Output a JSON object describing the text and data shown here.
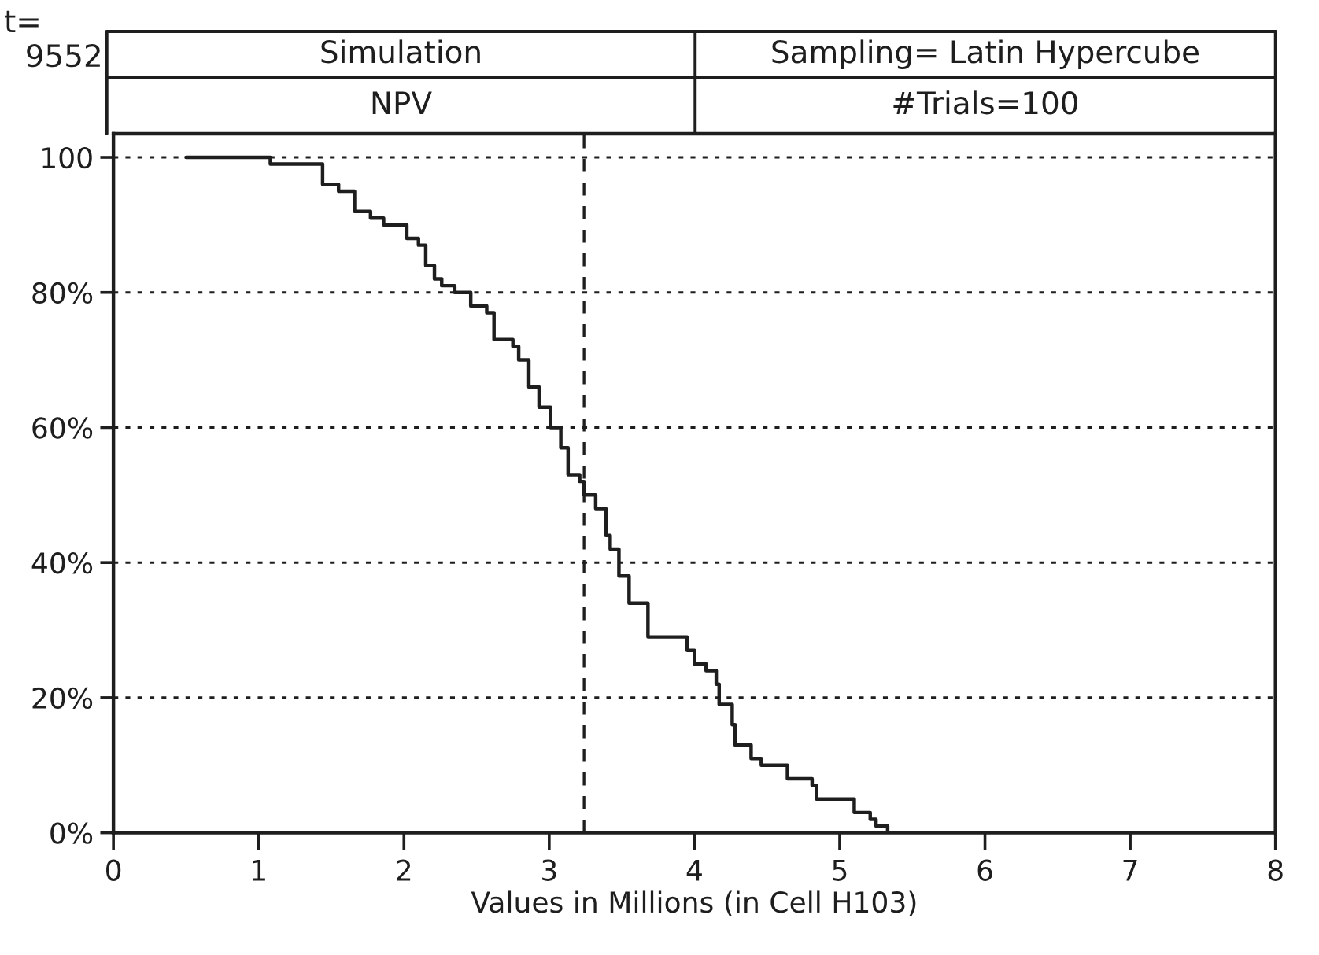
{
  "chart_data": {
    "type": "step",
    "title": "Simulation",
    "subtitle": "NPV",
    "xlabel": "Values in Millions (in Cell H103)",
    "annotations": [
      "t=",
      "9552",
      "Sampling= Latin Hypercube",
      "#Trials=100"
    ],
    "x": [
      0.5,
      1.08,
      1.44,
      1.55,
      1.66,
      1.77,
      1.86,
      2.02,
      2.1,
      2.15,
      2.21,
      2.26,
      2.35,
      2.46,
      2.57,
      2.62,
      2.75,
      2.79,
      2.86,
      2.93,
      3.01,
      3.08,
      3.13,
      3.21,
      3.24,
      3.32,
      3.39,
      3.42,
      3.48,
      3.55,
      3.68,
      3.95,
      4.0,
      4.08,
      4.15,
      4.17,
      4.26,
      4.28,
      4.39,
      4.46,
      4.64,
      4.81,
      4.84,
      5.1,
      5.21,
      5.25,
      5.33
    ],
    "series": [
      {
        "color": "#1e1e1e",
        "values": [
          100,
          99,
          96,
          95,
          92,
          91,
          90,
          88,
          87,
          84,
          82,
          81,
          80,
          78,
          77,
          73,
          72,
          70,
          66,
          63,
          60,
          57,
          53,
          52,
          50,
          48,
          44,
          42,
          38,
          34,
          29,
          27,
          25,
          24,
          22,
          19,
          16,
          13,
          11,
          10,
          8,
          7,
          5,
          3,
          2,
          1,
          0
        ]
      }
    ],
    "xlim": [
      0,
      8
    ],
    "xticks": [
      0,
      1,
      2,
      3,
      4,
      5,
      6,
      7,
      8
    ],
    "ylim": [
      0,
      103.5
    ],
    "yticks": [
      {
        "value": 0,
        "label": "0%"
      },
      {
        "value": 20,
        "label": "20%"
      },
      {
        "value": 40,
        "label": "40%"
      },
      {
        "value": 60,
        "label": "60%"
      },
      {
        "value": 80,
        "label": "80%"
      },
      {
        "value": 100,
        "label": "100"
      }
    ],
    "grid": "y",
    "marker": "none",
    "line_style": "solid",
    "ref_lines": [
      {
        "axis": "x",
        "value": 3.24,
        "color": "#1e1e1e",
        "line_style": "dashed"
      }
    ]
  }
}
